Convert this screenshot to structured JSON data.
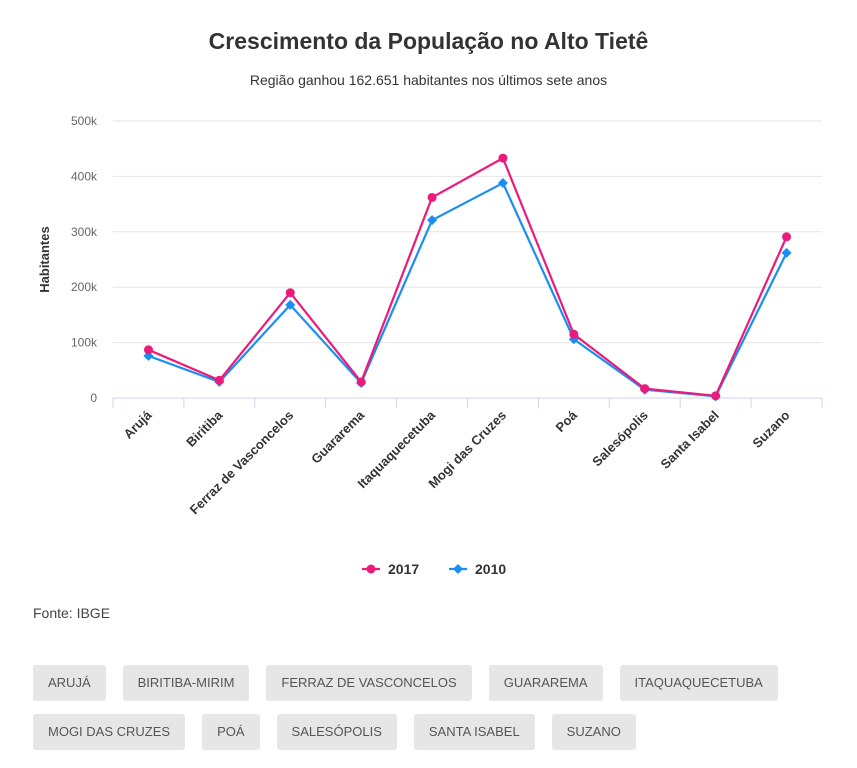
{
  "header": {
    "title": "Crescimento da População no Alto Tietê",
    "subtitle": "Região ganhou 162.651 habitantes nos últimos sete anos"
  },
  "source": "Fonte: IBGE",
  "chart_data": {
    "type": "line",
    "ylabel": "Habitantes",
    "xlabel": "",
    "ylim": [
      0,
      500000
    ],
    "yticks": [
      0,
      100000,
      200000,
      300000,
      400000,
      500000
    ],
    "ytick_labels": [
      "0",
      "100k",
      "200k",
      "300k",
      "400k",
      "500k"
    ],
    "categories": [
      "Arujá",
      "Biritiba",
      "Ferraz de Vasconcelos",
      "Guararema",
      "Itaquaquecetuba",
      "Mogi das Cruzes",
      "Poá",
      "Salesópolis",
      "Santa Isabel",
      "Suzano"
    ],
    "series": [
      {
        "name": "2017",
        "color": "#ec1a7a",
        "marker": "circle",
        "values": [
          87000,
          32000,
          190000,
          29000,
          362000,
          433000,
          115000,
          17000,
          4000,
          291000
        ]
      },
      {
        "name": "2010",
        "color": "#1a8ef2",
        "marker": "diamond",
        "values": [
          76000,
          29000,
          168000,
          27000,
          321000,
          388000,
          106000,
          15000,
          3000,
          262000
        ]
      }
    ],
    "grid": true,
    "legend": "bottom-center"
  },
  "filters": [
    [
      "ARUJÁ",
      "BIRITIBA-MIRIM",
      "FERRAZ DE VASCONCELOS",
      "GUARAREMA",
      "ITAQUAQUECETUBA"
    ],
    [
      "MOGI DAS CRUZES",
      "POÁ",
      "SALESÓPOLIS",
      "SANTA ISABEL",
      "SUZANO"
    ]
  ]
}
